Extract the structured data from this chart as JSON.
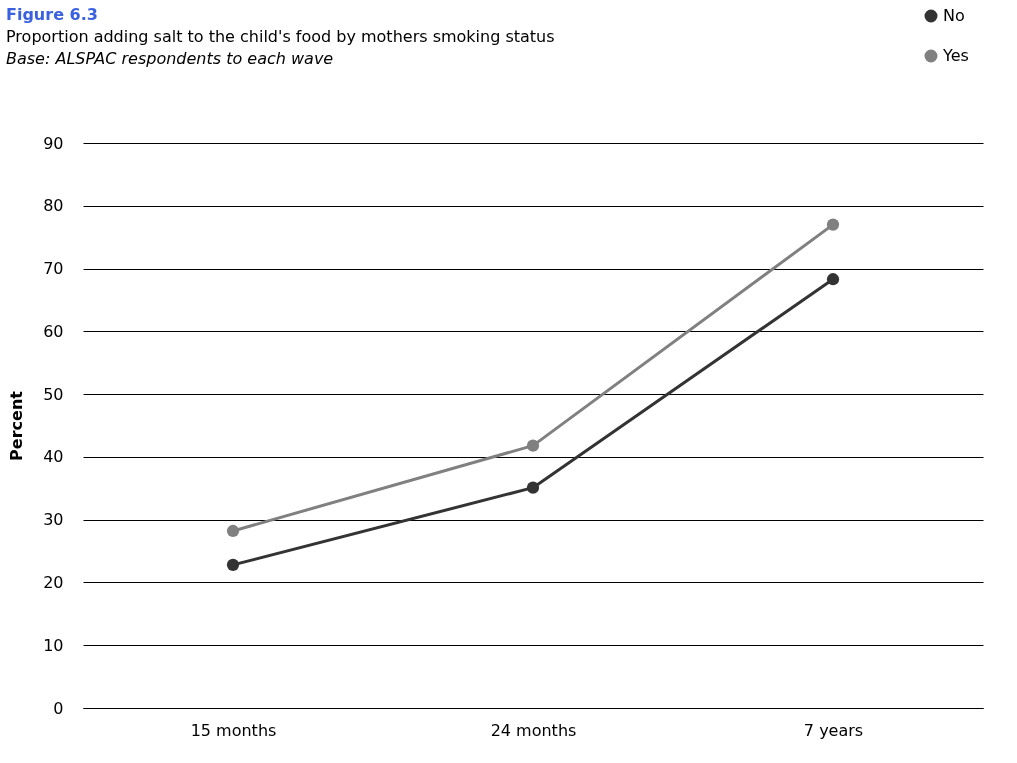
{
  "chart_data": {
    "type": "line",
    "title": "Figure 6.3",
    "subtitle": "Proportion adding salt to the child's food by mothers smoking status",
    "annotations": [
      "Base: ALSPAC respondents to each wave"
    ],
    "ylabel": "Percent",
    "categories": [
      "15 months",
      "24 months",
      "7 years"
    ],
    "series": [
      {
        "name": "No",
        "color": "#333333",
        "values": [
          22.8,
          35.1,
          68.3
        ]
      },
      {
        "name": "Yes",
        "color": "#808080",
        "values": [
          28.2,
          41.8,
          77.0
        ]
      }
    ],
    "ylim": [
      0,
      90
    ],
    "yticks": [
      0,
      10,
      20,
      30,
      40,
      50,
      60,
      70,
      80,
      90
    ],
    "grid": "y",
    "legend": "top right",
    "marker": "circle",
    "line_style": "solid"
  }
}
